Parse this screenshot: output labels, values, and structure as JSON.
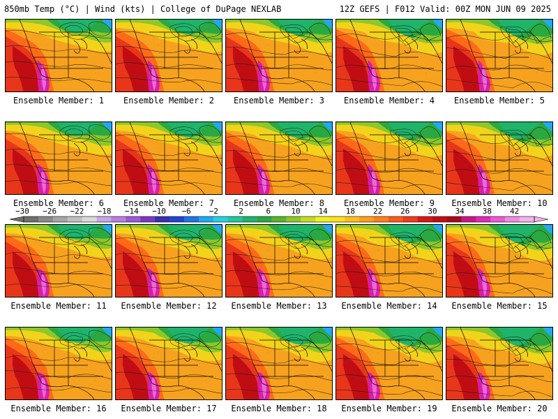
{
  "header": {
    "left": "850mb Temp (°C) | Wind (kts) | College of DuPage NEXLAB",
    "right": "12Z GEFS | F012 Valid: 00Z MON JUN 09 2025"
  },
  "panels": [
    {
      "label": "Ensemble Member: 1"
    },
    {
      "label": "Ensemble Member: 2"
    },
    {
      "label": "Ensemble Member: 3"
    },
    {
      "label": "Ensemble Member: 4"
    },
    {
      "label": "Ensemble Member: 5"
    },
    {
      "label": "Ensemble Member: 6"
    },
    {
      "label": "Ensemble Member: 7"
    },
    {
      "label": "Ensemble Member: 8"
    },
    {
      "label": "Ensemble Member: 9"
    },
    {
      "label": "Ensemble Member: 10"
    },
    {
      "label": "Ensemble Member: 11"
    },
    {
      "label": "Ensemble Member: 12"
    },
    {
      "label": "Ensemble Member: 13"
    },
    {
      "label": "Ensemble Member: 14"
    },
    {
      "label": "Ensemble Member: 15"
    },
    {
      "label": "Ensemble Member: 16"
    },
    {
      "label": "Ensemble Member: 17"
    },
    {
      "label": "Ensemble Member: 18"
    },
    {
      "label": "Ensemble Member: 19"
    },
    {
      "label": "Ensemble Member: 20"
    }
  ],
  "colorbar": {
    "tick_labels": [
      "−30",
      "−26",
      "−22",
      "−18",
      "−14",
      "−10",
      "−6",
      "−2",
      "2",
      "6",
      "10",
      "14",
      "18",
      "22",
      "26",
      "30",
      "34",
      "38",
      "42"
    ],
    "colors": [
      "#6e6e6e",
      "#8a8a8a",
      "#a6a6a6",
      "#bfbfbf",
      "#d9d9d9",
      "#c9a6e6",
      "#b77fe0",
      "#9e58d6",
      "#7a38c2",
      "#3a2fb0",
      "#2343d6",
      "#1f74e8",
      "#22a8f0",
      "#25d0e0",
      "#22c6a0",
      "#1fb46a",
      "#2aa842",
      "#5ab52e",
      "#8cc82a",
      "#c2dc22",
      "#eef01c",
      "#ffe01c",
      "#ffc01a",
      "#ffa01a",
      "#ff801a",
      "#ff5a18",
      "#f03a18",
      "#d81818",
      "#c00d14",
      "#a80a1a",
      "#cc1488",
      "#e02ab8",
      "#ec5ad0",
      "#f08ae0",
      "#f0b4ec"
    ]
  }
}
